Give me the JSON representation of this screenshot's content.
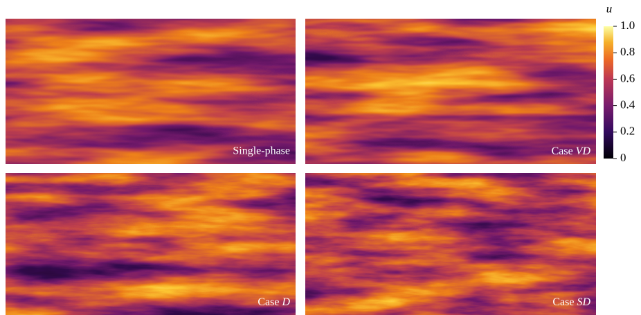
{
  "panels": [
    {
      "label": "Single-phase"
    },
    {
      "prefix": "Case",
      "name": "VD"
    },
    {
      "prefix": "Case",
      "name": "D"
    },
    {
      "prefix": "Case",
      "name": "SD"
    }
  ],
  "colorbar": {
    "label": "u",
    "lim": [
      0,
      1
    ],
    "ticks": [
      {
        "value": 1,
        "label": "1.0"
      },
      0.8,
      0.6,
      0.4,
      0.2,
      0
    ]
  }
}
